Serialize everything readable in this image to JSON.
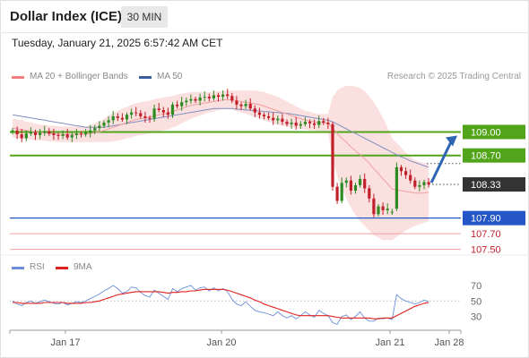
{
  "header": {
    "title": "Dollar Index (ICE)",
    "interval": "30 MIN",
    "datetime": "Tuesday, January 21, 2025 6:57:42 AM CET"
  },
  "legend": {
    "items": [
      {
        "label": "MA 20 + Bollinger Bands",
        "color": "#f08080"
      },
      {
        "label": "MA 50",
        "color": "#3a5fa0"
      }
    ],
    "credit": "Research © 2025 Trading Central"
  },
  "colors": {
    "up": "#2e8b22",
    "down": "#c0202a",
    "support": "#2456c8",
    "resistance": "#52a41a",
    "thin_level": "#f0a0a0",
    "price_tag": "#333333",
    "bollinger_fill": "#fbe0e0",
    "arrow": "#2f66b4"
  },
  "chart_data": [
    {
      "type": "candlestick",
      "title": "Dollar Index (ICE)",
      "ylim": [
        107.45,
        109.6
      ],
      "x_ticks": [
        "Jan 17",
        "Jan 20",
        "Jan 21",
        "Jan 28"
      ],
      "last_price": "108.33",
      "levels": [
        {
          "label": "109.00",
          "value": 109.0,
          "style": "resistance"
        },
        {
          "label": "108.70",
          "value": 108.7,
          "style": "resistance"
        },
        {
          "label": "108.33",
          "value": 108.33,
          "style": "price"
        },
        {
          "label": "107.90",
          "value": 107.9,
          "style": "support"
        },
        {
          "label": "107.70",
          "value": 107.7,
          "style": "thin"
        },
        {
          "label": "107.50",
          "value": 107.5,
          "style": "thin"
        }
      ],
      "close": [
        109.02,
        108.97,
        108.92,
        108.98,
        109.0,
        108.96,
        108.99,
        109.01,
        108.98,
        108.96,
        108.95,
        108.97,
        108.93,
        108.96,
        108.98,
        108.97,
        108.99,
        109.02,
        109.05,
        109.08,
        109.12,
        109.15,
        109.2,
        109.18,
        109.16,
        109.22,
        109.25,
        109.24,
        109.2,
        109.18,
        109.17,
        109.3,
        109.28,
        109.25,
        109.22,
        109.35,
        109.33,
        109.38,
        109.4,
        109.42,
        109.4,
        109.44,
        109.45,
        109.43,
        109.47,
        109.45,
        109.48,
        109.46,
        109.4,
        109.35,
        109.33,
        109.36,
        109.3,
        109.25,
        109.22,
        109.2,
        109.18,
        109.15,
        109.17,
        109.13,
        109.1,
        109.12,
        109.08,
        109.1,
        109.13,
        109.11,
        109.09,
        109.14,
        109.12,
        109.1,
        108.3,
        108.12,
        108.35,
        108.38,
        108.25,
        108.32,
        108.4,
        108.28,
        108.15,
        107.95,
        108.05,
        108.0,
        108.02,
        107.98,
        108.55,
        108.5,
        108.45,
        108.38,
        108.3,
        108.32,
        108.36,
        108.33
      ],
      "open": [
        109.0,
        109.02,
        108.97,
        108.92,
        108.98,
        109.0,
        108.96,
        108.99,
        109.01,
        108.98,
        108.96,
        108.95,
        108.97,
        108.93,
        108.96,
        108.98,
        108.97,
        108.99,
        109.02,
        109.05,
        109.08,
        109.12,
        109.15,
        109.2,
        109.18,
        109.16,
        109.22,
        109.25,
        109.24,
        109.2,
        109.18,
        109.17,
        109.3,
        109.28,
        109.25,
        109.22,
        109.35,
        109.33,
        109.38,
        109.4,
        109.42,
        109.4,
        109.44,
        109.45,
        109.43,
        109.47,
        109.45,
        109.48,
        109.46,
        109.4,
        109.35,
        109.33,
        109.36,
        109.3,
        109.25,
        109.22,
        109.2,
        109.18,
        109.15,
        109.17,
        109.13,
        109.1,
        109.12,
        109.08,
        109.1,
        109.13,
        109.11,
        109.09,
        109.14,
        109.12,
        109.1,
        108.3,
        108.12,
        108.35,
        108.38,
        108.25,
        108.32,
        108.4,
        108.28,
        108.15,
        107.95,
        108.05,
        108.0,
        107.98,
        108.02,
        108.55,
        108.5,
        108.45,
        108.38,
        108.3,
        108.32,
        108.36
      ],
      "ma20": [
        109.05,
        109.04,
        109.03,
        109.02,
        109.01,
        109.0,
        108.99,
        108.99,
        108.98,
        108.98,
        108.97,
        108.97,
        108.97,
        108.97,
        108.97,
        108.97,
        108.97,
        108.98,
        108.99,
        109.0,
        109.02,
        109.04,
        109.06,
        109.08,
        109.1,
        109.12,
        109.14,
        109.16,
        109.17,
        109.18,
        109.19,
        109.21,
        109.22,
        109.23,
        109.24,
        109.26,
        109.28,
        109.3,
        109.32,
        109.34,
        109.35,
        109.36,
        109.37,
        109.38,
        109.39,
        109.4,
        109.41,
        109.41,
        109.41,
        109.4,
        109.39,
        109.38,
        109.37,
        109.36,
        109.35,
        109.33,
        109.31,
        109.29,
        109.27,
        109.25,
        109.23,
        109.21,
        109.19,
        109.17,
        109.15,
        109.14,
        109.13,
        109.12,
        109.12,
        109.11,
        109.05,
        108.98,
        108.92,
        108.87,
        108.81,
        108.76,
        108.71,
        108.66,
        108.6,
        108.53,
        108.47,
        108.4,
        108.34,
        108.27,
        108.26,
        108.25,
        108.24,
        108.23,
        108.22,
        108.22,
        108.22,
        108.23
      ],
      "ma50": [
        109.22,
        109.21,
        109.2,
        109.19,
        109.18,
        109.17,
        109.16,
        109.15,
        109.14,
        109.13,
        109.12,
        109.11,
        109.1,
        109.09,
        109.08,
        109.07,
        109.06,
        109.06,
        109.06,
        109.06,
        109.06,
        109.07,
        109.08,
        109.09,
        109.1,
        109.11,
        109.12,
        109.13,
        109.14,
        109.15,
        109.16,
        109.17,
        109.18,
        109.19,
        109.2,
        109.21,
        109.22,
        109.23,
        109.24,
        109.25,
        109.26,
        109.27,
        109.28,
        109.29,
        109.3,
        109.3,
        109.3,
        109.3,
        109.3,
        109.29,
        109.29,
        109.28,
        109.28,
        109.27,
        109.27,
        109.26,
        109.26,
        109.25,
        109.25,
        109.24,
        109.24,
        109.23,
        109.22,
        109.21,
        109.2,
        109.19,
        109.18,
        109.17,
        109.16,
        109.15,
        109.13,
        109.1,
        109.07,
        109.04,
        109.01,
        108.98,
        108.95,
        108.92,
        108.89,
        108.86,
        108.83,
        108.8,
        108.77,
        108.74,
        108.71,
        108.68,
        108.66,
        108.63,
        108.61,
        108.59,
        108.57,
        108.55
      ],
      "band_width": [
        0.12,
        0.12,
        0.12,
        0.11,
        0.11,
        0.11,
        0.1,
        0.1,
        0.1,
        0.1,
        0.1,
        0.1,
        0.1,
        0.1,
        0.1,
        0.1,
        0.1,
        0.11,
        0.12,
        0.13,
        0.15,
        0.17,
        0.18,
        0.19,
        0.2,
        0.2,
        0.21,
        0.21,
        0.21,
        0.21,
        0.21,
        0.21,
        0.21,
        0.21,
        0.21,
        0.2,
        0.2,
        0.19,
        0.18,
        0.17,
        0.16,
        0.15,
        0.14,
        0.13,
        0.13,
        0.12,
        0.12,
        0.12,
        0.12,
        0.13,
        0.14,
        0.15,
        0.16,
        0.17,
        0.17,
        0.18,
        0.18,
        0.18,
        0.18,
        0.17,
        0.16,
        0.15,
        0.14,
        0.13,
        0.12,
        0.12,
        0.11,
        0.11,
        0.11,
        0.12,
        0.4,
        0.55,
        0.65,
        0.72,
        0.78,
        0.82,
        0.85,
        0.86,
        0.86,
        0.85,
        0.82,
        0.78,
        0.72,
        0.65,
        0.6,
        0.55,
        0.5,
        0.46,
        0.42,
        0.4,
        0.38,
        0.37
      ]
    },
    {
      "type": "line",
      "title": "RSI",
      "legend": [
        "RSI",
        "9MA"
      ],
      "ylim": [
        18,
        78
      ],
      "y_ticks": [
        70,
        50,
        30
      ],
      "series": [
        {
          "name": "RSI",
          "color": "#6a8fd8",
          "values": [
            50,
            46,
            44,
            48,
            50,
            47,
            49,
            51,
            49,
            47,
            46,
            48,
            45,
            47,
            49,
            48,
            50,
            53,
            56,
            59,
            63,
            66,
            70,
            66,
            60,
            62,
            68,
            67,
            61,
            57,
            55,
            64,
            60,
            56,
            52,
            66,
            62,
            66,
            68,
            70,
            64,
            67,
            68,
            63,
            67,
            63,
            66,
            62,
            52,
            46,
            44,
            49,
            43,
            38,
            36,
            35,
            33,
            31,
            36,
            31,
            28,
            31,
            27,
            31,
            36,
            32,
            29,
            38,
            34,
            31,
            22,
            20,
            30,
            32,
            26,
            30,
            36,
            28,
            24,
            24,
            28,
            27,
            28,
            26,
            58,
            53,
            50,
            48,
            46,
            48,
            51,
            49
          ]
        },
        {
          "name": "9MA",
          "color": "#e0201e",
          "values": [
            48,
            48,
            47,
            47,
            47,
            47,
            47,
            48,
            48,
            48,
            48,
            48,
            47,
            47,
            47,
            47,
            48,
            48,
            49,
            50,
            52,
            54,
            56,
            58,
            59,
            60,
            61,
            62,
            62,
            62,
            62,
            62,
            62,
            61,
            60,
            61,
            61,
            62,
            62,
            63,
            63,
            64,
            65,
            65,
            65,
            65,
            65,
            64,
            62,
            60,
            58,
            56,
            54,
            51,
            49,
            46,
            44,
            42,
            40,
            38,
            36,
            34,
            32,
            31,
            31,
            31,
            31,
            31,
            31,
            31,
            30,
            29,
            28,
            28,
            28,
            28,
            28,
            28,
            28,
            27,
            27,
            28,
            28,
            28,
            31,
            34,
            37,
            40,
            43,
            45,
            47,
            48
          ]
        }
      ]
    }
  ]
}
